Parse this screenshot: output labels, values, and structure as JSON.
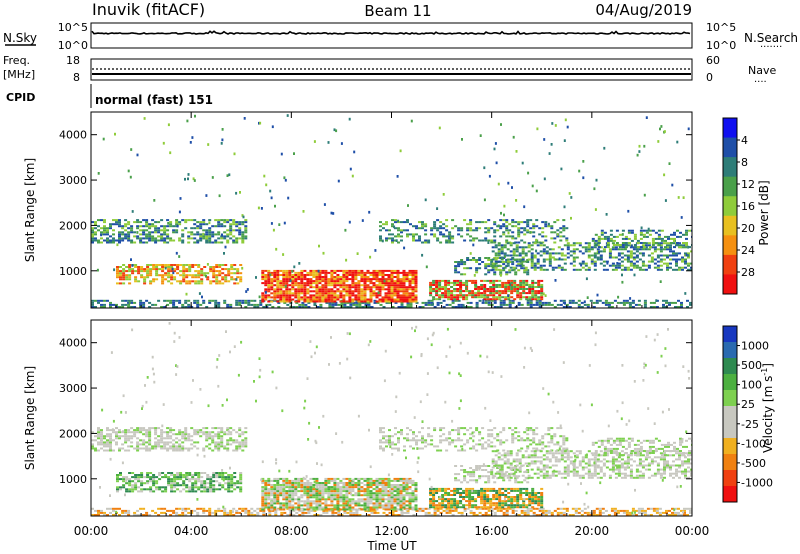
{
  "header": {
    "title": "Inuvik (fitACF)",
    "beam": "Beam 11",
    "date": "04/Aug/2019"
  },
  "panels": {
    "nsky": {
      "left_label": "N.Sky",
      "left_ticks": [
        "10^5",
        "10^0"
      ],
      "right_ticks": [
        "10^5",
        "10^0"
      ],
      "right_label": "N.Search",
      "right_legend": "......."
    },
    "freq": {
      "left_label_top": "Freq.",
      "left_label_unit": "[MHz]",
      "left_ticks": [
        "18",
        "8"
      ],
      "right_ticks": [
        "60",
        "0"
      ],
      "right_label": "Nave",
      "right_legend": "...."
    },
    "cpid": {
      "label": "CPID",
      "value": "normal (fast) 151"
    }
  },
  "chart_data": [
    {
      "type": "heatmap",
      "name": "power",
      "ylabel": "Slant Range [km]",
      "ylim": [
        180,
        4500
      ],
      "yticks": [
        1000,
        2000,
        3000,
        4000
      ],
      "xlim": [
        0,
        24
      ],
      "colorbar": {
        "label": "Power [dB]",
        "ticks": [
          "4",
          "8",
          "12",
          "16",
          "20",
          "24",
          "28"
        ],
        "colors": [
          "#1010f0",
          "#1f4fa8",
          "#2e7d78",
          "#4aa04a",
          "#8fcc3a",
          "#e8c020",
          "#f59010",
          "#f04010",
          "#f01010"
        ]
      }
    },
    {
      "type": "heatmap",
      "name": "velocity",
      "ylabel": "Slant Range [km]",
      "ylim": [
        180,
        4500
      ],
      "yticks": [
        1000,
        2000,
        3000,
        4000
      ],
      "xlim": [
        0,
        24
      ],
      "colorbar": {
        "label": "Velocity",
        "unit": "[m s",
        "unit_sup": "-1",
        "unit_end": "]",
        "ticks": [
          "1000",
          "500",
          "100",
          "25",
          "-25",
          "-100",
          "-500",
          "-1000"
        ],
        "colors": [
          "#1838c0",
          "#2a6ab0",
          "#2e8a50",
          "#4cb040",
          "#7ed050",
          "#c8c8c0",
          "#c8c8c0",
          "#f0b020",
          "#f08010",
          "#f04010",
          "#f01010"
        ]
      }
    }
  ],
  "xaxis": {
    "ticks": [
      "00:00",
      "04:00",
      "08:00",
      "12:00",
      "16:00",
      "20:00",
      "00:00"
    ],
    "label": "Time UT"
  }
}
